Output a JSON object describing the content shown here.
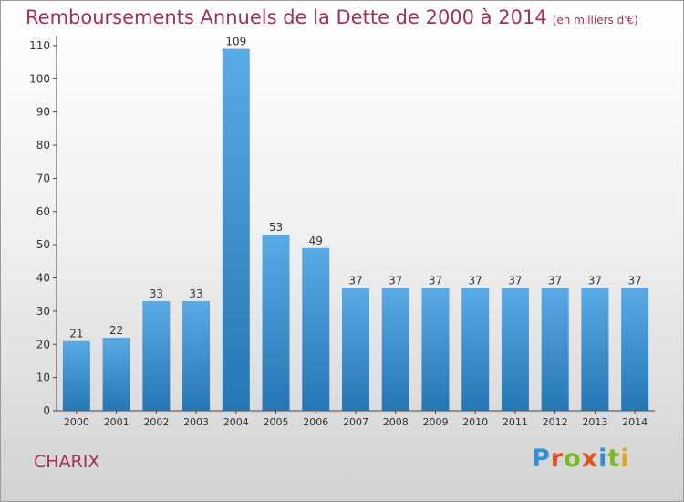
{
  "title": "Remboursements Annuels de la Dette de 2000 à 2014",
  "subtitle": "(en milliers d'€)",
  "place_name": "CHARIX",
  "logo": {
    "letters": [
      "P",
      "r",
      "o",
      "x",
      "i",
      "t",
      "i"
    ],
    "colors": [
      "#2f8fd6",
      "#e0531f",
      "#7bb829",
      "#e0531f",
      "#2f8fd6",
      "#7bb829",
      "#e9a21c"
    ]
  },
  "colors": {
    "bar_top": "#5aaae6",
    "bar_bottom": "#2576b4",
    "title": "#a0305a"
  },
  "chart_data": {
    "type": "bar",
    "title": "Remboursements Annuels de la Dette de 2000 à 2014",
    "subtitle": "(en milliers d'€)",
    "categories": [
      "2000",
      "2001",
      "2002",
      "2003",
      "2004",
      "2005",
      "2006",
      "2007",
      "2008",
      "2009",
      "2010",
      "2011",
      "2012",
      "2013",
      "2014"
    ],
    "values": [
      21,
      22,
      33,
      33,
      109,
      53,
      49,
      37,
      37,
      37,
      37,
      37,
      37,
      37,
      37
    ],
    "yticks": [
      0,
      10,
      20,
      30,
      40,
      50,
      60,
      70,
      80,
      90,
      100,
      110
    ],
    "ylim": [
      0,
      113
    ],
    "grid": false,
    "xlabel": "",
    "ylabel": ""
  }
}
